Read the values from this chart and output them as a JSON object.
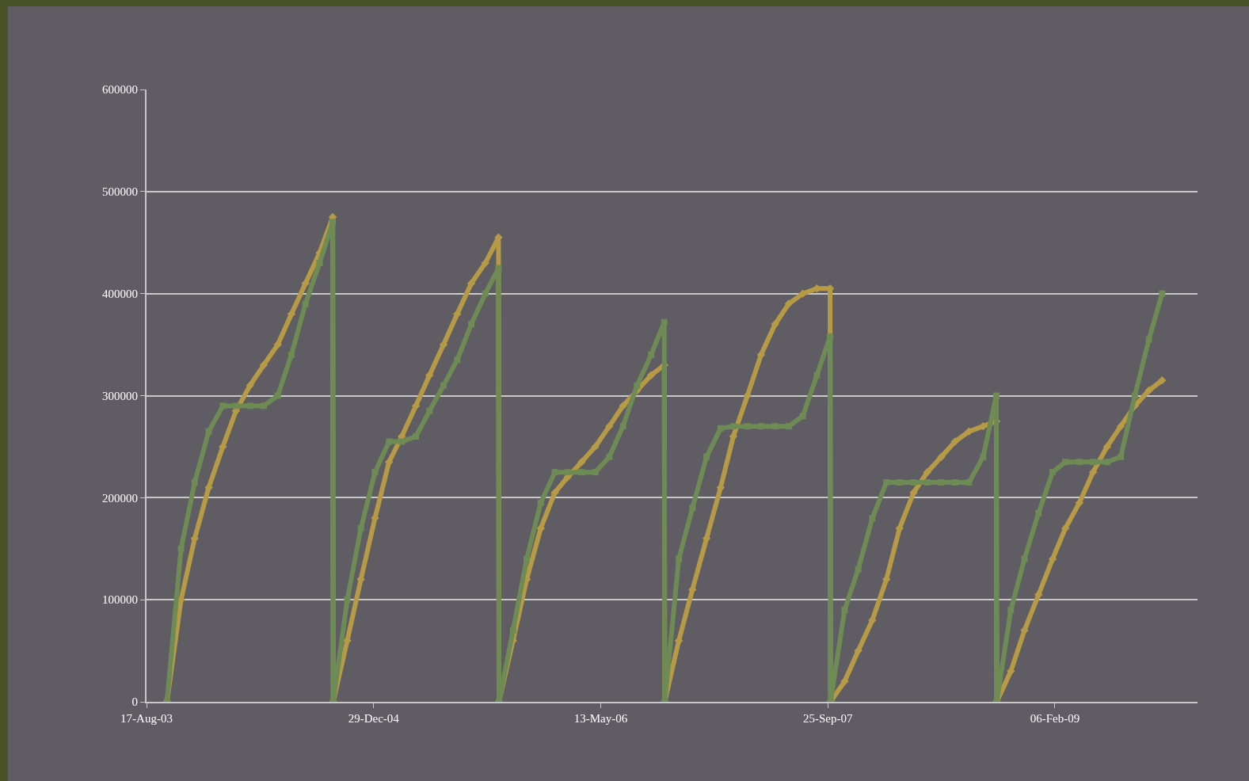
{
  "chart_data": {
    "type": "line",
    "x": [
      "2003-10-01",
      "2003-11-01",
      "2003-12-01",
      "2004-01-01",
      "2004-02-01",
      "2004-03-01",
      "2004-04-01",
      "2004-05-01",
      "2004-06-01",
      "2004-07-01",
      "2004-08-01",
      "2004-09-01",
      "2004-09-30",
      "2004-10-01",
      "2004-11-01",
      "2004-12-01",
      "2005-01-01",
      "2005-02-01",
      "2005-03-01",
      "2005-04-01",
      "2005-05-01",
      "2005-06-01",
      "2005-07-01",
      "2005-08-01",
      "2005-09-01",
      "2005-09-30",
      "2005-10-01",
      "2005-11-01",
      "2005-12-01",
      "2006-01-01",
      "2006-02-01",
      "2006-03-01",
      "2006-04-01",
      "2006-05-01",
      "2006-06-01",
      "2006-07-01",
      "2006-08-01",
      "2006-09-01",
      "2006-09-30",
      "2006-10-01",
      "2006-11-01",
      "2006-12-01",
      "2007-01-01",
      "2007-02-01",
      "2007-03-01",
      "2007-04-01",
      "2007-05-01",
      "2007-06-01",
      "2007-07-01",
      "2007-08-01",
      "2007-09-01",
      "2007-09-30",
      "2007-10-01",
      "2007-11-01",
      "2007-12-01",
      "2008-01-01",
      "2008-02-01",
      "2008-03-01",
      "2008-04-01",
      "2008-05-01",
      "2008-06-01",
      "2008-07-01",
      "2008-08-01",
      "2008-09-01",
      "2008-09-30",
      "2008-10-01",
      "2008-11-01",
      "2008-12-01",
      "2009-01-01",
      "2009-02-01",
      "2009-03-01",
      "2009-04-01",
      "2009-05-01",
      "2009-06-01",
      "2009-07-01",
      "2009-08-01",
      "2009-09-01",
      "2009-09-30"
    ],
    "series": [
      {
        "color": "#b79a45",
        "marker": "diamond",
        "values": [
          0,
          100000,
          160000,
          210000,
          250000,
          285000,
          310000,
          330000,
          350000,
          380000,
          410000,
          440000,
          475000,
          0,
          60000,
          120000,
          180000,
          235000,
          260000,
          290000,
          320000,
          350000,
          380000,
          410000,
          430000,
          455000,
          0,
          60000,
          120000,
          170000,
          205000,
          220000,
          235000,
          250000,
          270000,
          290000,
          305000,
          320000,
          330000,
          0,
          60000,
          110000,
          160000,
          210000,
          260000,
          300000,
          340000,
          370000,
          390000,
          400000,
          405000,
          405000,
          0,
          20000,
          50000,
          80000,
          120000,
          170000,
          205000,
          225000,
          240000,
          255000,
          265000,
          270000,
          275000,
          0,
          30000,
          70000,
          105000,
          140000,
          170000,
          195000,
          225000,
          250000,
          270000,
          290000,
          305000,
          315000
        ]
      },
      {
        "color": "#6e8a55",
        "marker": "square",
        "values": [
          0,
          150000,
          215000,
          265000,
          290000,
          290000,
          290000,
          290000,
          300000,
          340000,
          390000,
          430000,
          470000,
          0,
          100000,
          170000,
          225000,
          255000,
          255000,
          260000,
          285000,
          310000,
          335000,
          370000,
          400000,
          425000,
          0,
          70000,
          140000,
          195000,
          225000,
          225000,
          225000,
          225000,
          240000,
          270000,
          310000,
          340000,
          372000,
          0,
          140000,
          190000,
          240000,
          268000,
          270000,
          270000,
          270000,
          270000,
          270000,
          280000,
          320000,
          358000,
          0,
          90000,
          130000,
          180000,
          215000,
          215000,
          215000,
          215000,
          215000,
          215000,
          215000,
          240000,
          300000,
          0,
          90000,
          140000,
          185000,
          225000,
          235000,
          235000,
          235000,
          235000,
          240000,
          300000,
          355000,
          400000
        ]
      }
    ],
    "xlim": [
      "2003-08-17",
      "2009-12-17"
    ],
    "xticks": [
      {
        "value": "2003-08-17",
        "label": "17-Aug-03"
      },
      {
        "value": "2004-12-29",
        "label": "29-Dec-04"
      },
      {
        "value": "2006-05-13",
        "label": "13-May-06"
      },
      {
        "value": "2007-09-25",
        "label": "25-Sep-07"
      },
      {
        "value": "2009-02-06",
        "label": "06-Feb-09"
      }
    ],
    "ylim": [
      0,
      600000
    ],
    "yticks": [
      0,
      100000,
      200000,
      300000,
      400000,
      500000,
      600000
    ],
    "grid": "y"
  }
}
